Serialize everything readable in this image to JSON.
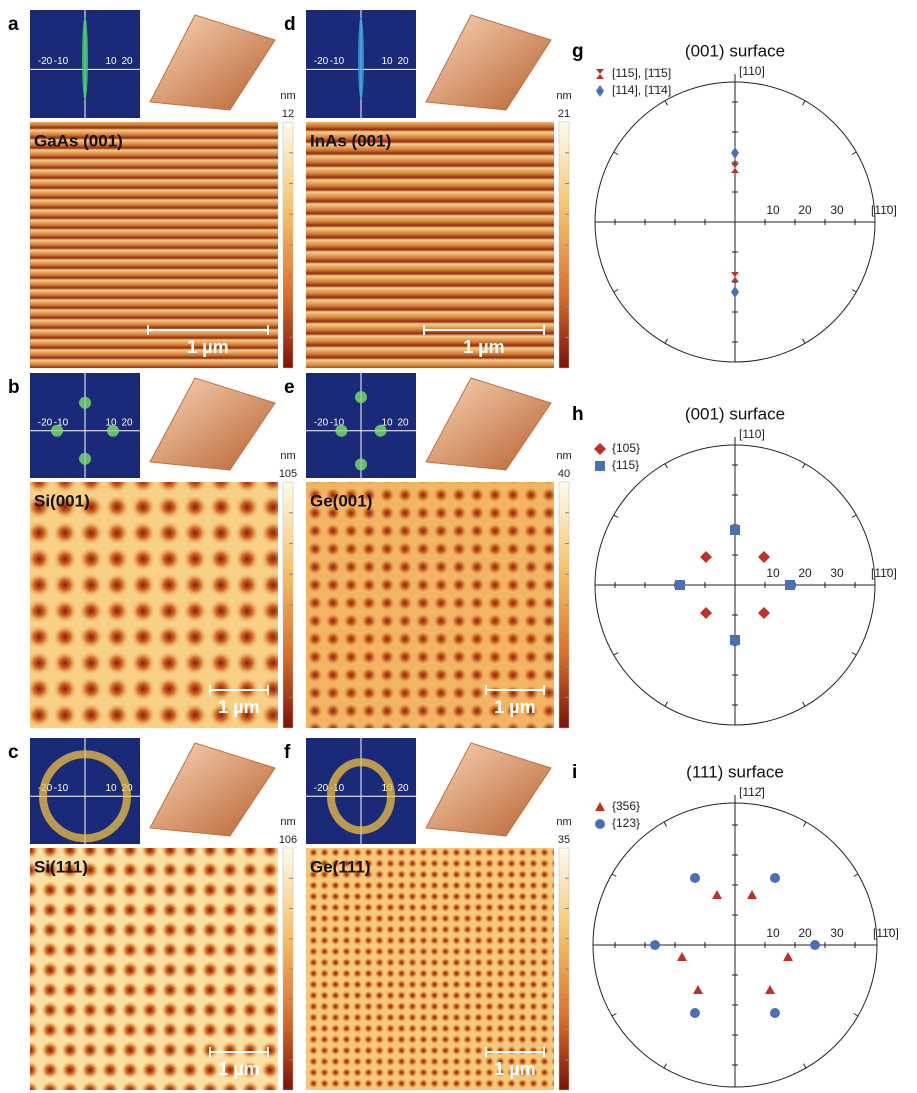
{
  "afm_panels": [
    {
      "letter": "a",
      "sample": "GaAs (001)",
      "unit": "nm",
      "colorbar_max": 12,
      "scale_bar": "1 µm",
      "fft_ticks": [
        "-20",
        "-10",
        "10",
        "20"
      ]
    },
    {
      "letter": "d",
      "sample": "InAs (001)",
      "unit": "nm",
      "colorbar_max": 21,
      "scale_bar": "1 µm",
      "fft_ticks": [
        "-20",
        "-10",
        "10",
        "20"
      ]
    },
    {
      "letter": "b",
      "sample": "Si(001)",
      "unit": "nm",
      "colorbar_max": 105,
      "scale_bar": "1 µm",
      "fft_ticks": [
        "-20",
        "-10",
        "10",
        "20"
      ]
    },
    {
      "letter": "e",
      "sample": "Ge(001)",
      "unit": "nm",
      "colorbar_max": 40,
      "scale_bar": "1 µm",
      "fft_ticks": [
        "-20",
        "-10",
        "10",
        "20"
      ]
    },
    {
      "letter": "c",
      "sample": "Si(111)",
      "unit": "nm",
      "colorbar_max": 106,
      "scale_bar": "1 µm",
      "fft_ticks": [
        "-20",
        "-10",
        "10",
        "20"
      ]
    },
    {
      "letter": "f",
      "sample": "Ge(111)",
      "unit": "nm",
      "colorbar_max": 35,
      "scale_bar": "1 µm",
      "fft_ticks": [
        "-20",
        "-10",
        "10",
        "20"
      ]
    }
  ],
  "stereo_panels": [
    {
      "letter": "g",
      "title": "(001) surface",
      "legend": [
        "[115], [1̄1̄5]",
        "[114], [1̄1̄4]"
      ],
      "axis_top": "[110]",
      "axis_right": "[11̄0]",
      "ticks": [
        "10",
        "20",
        "30"
      ]
    },
    {
      "letter": "h",
      "title": "(001) surface",
      "legend": [
        "{105}",
        "{115}"
      ],
      "axis_top": "[110]",
      "axis_right": "[11̄0]",
      "ticks": [
        "10",
        "20",
        "30"
      ]
    },
    {
      "letter": "i",
      "title": "(111) surface",
      "legend": [
        "{356}",
        "{123}"
      ],
      "axis_top": "[112̄]",
      "axis_right": "[11̄0]",
      "ticks": [
        "10",
        "20",
        "30"
      ]
    }
  ]
}
